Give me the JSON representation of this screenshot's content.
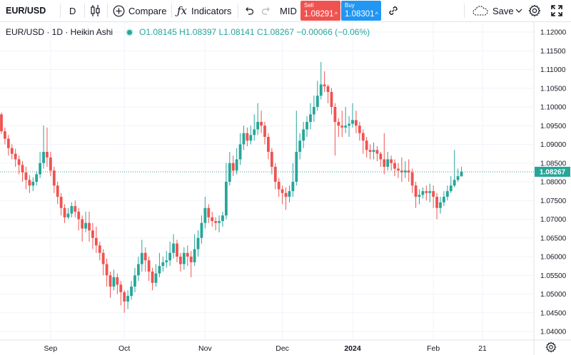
{
  "toolbar": {
    "symbol": "EUR/USD",
    "interval": "D",
    "compare_label": "Compare",
    "indicators_label": "Indicators",
    "mid_label": "MID",
    "sell": {
      "label": "Sell",
      "price": "1.08291"
    },
    "buy": {
      "label": "Buy",
      "price": "1.08301"
    },
    "save_label": "Save",
    "icons": [
      "candles-icon",
      "plus-circle-icon",
      "fx-icon",
      "undo-icon",
      "redo-icon",
      "link-icon",
      "cloud-icon",
      "chevron-down-icon",
      "gear-icon",
      "fullscreen-icon"
    ]
  },
  "legend": {
    "title": "EUR/USD · 1D · Heikin Ashi",
    "open_k": "O",
    "open": "1.08145",
    "high_k": "H",
    "high": "1.08397",
    "low_k": "L",
    "low": "1.08141",
    "close_k": "C",
    "close": "1.08267",
    "change": "−0.00066 (−0.06%)"
  },
  "colors": {
    "up": "#26a69a",
    "down": "#ef5350",
    "price_line": "#26a69a",
    "grid": "#f0f3fa"
  },
  "chart_data": {
    "type": "candlestick",
    "style": "Heikin Ashi",
    "ylim": [
      1.038,
      1.122
    ],
    "y_ticks": [
      "1.04000",
      "1.04500",
      "1.05000",
      "1.05500",
      "1.06000",
      "1.06500",
      "1.07000",
      "1.07500",
      "1.08000",
      "1.08500",
      "1.09000",
      "1.09500",
      "1.10000",
      "1.10500",
      "1.11000",
      "1.11500",
      "1.12000"
    ],
    "x_ticks": [
      {
        "label": "Sep",
        "index": 14,
        "bold": false
      },
      {
        "label": "Oct",
        "index": 35,
        "bold": false
      },
      {
        "label": "Nov",
        "index": 58,
        "bold": false
      },
      {
        "label": "Dec",
        "index": 80,
        "bold": false
      },
      {
        "label": "2024",
        "index": 100,
        "bold": true
      },
      {
        "label": "Feb",
        "index": 123,
        "bold": false
      },
      {
        "label": "21",
        "index": 137,
        "bold": false
      }
    ],
    "last_price": "1.08267",
    "candles": [
      [
        1.098,
        1.0935,
        1.0985,
        1.0928
      ],
      [
        1.0935,
        1.0915,
        1.0945,
        1.09
      ],
      [
        1.0915,
        1.089,
        1.0925,
        1.087
      ],
      [
        1.089,
        1.0875,
        1.09,
        1.086
      ],
      [
        1.0875,
        1.086,
        1.0888,
        1.084
      ],
      [
        1.086,
        1.0845,
        1.087,
        1.082
      ],
      [
        1.0845,
        1.0825,
        1.0855,
        1.08
      ],
      [
        1.0825,
        1.0805,
        1.084,
        1.078
      ],
      [
        1.0805,
        1.079,
        1.0818,
        1.077
      ],
      [
        1.079,
        1.08,
        1.0812,
        1.0775
      ],
      [
        1.08,
        1.082,
        1.0828,
        1.079
      ],
      [
        1.082,
        1.085,
        1.088,
        1.081
      ],
      [
        1.085,
        1.088,
        1.095,
        1.0835
      ],
      [
        1.088,
        1.0865,
        1.0945,
        1.084
      ],
      [
        1.0865,
        1.083,
        1.088,
        1.0815
      ],
      [
        1.083,
        1.079,
        1.084,
        1.077
      ],
      [
        1.079,
        1.076,
        1.08,
        1.074
      ],
      [
        1.076,
        1.073,
        1.077,
        1.071
      ],
      [
        1.073,
        1.0705,
        1.074,
        1.069
      ],
      [
        1.0705,
        1.0715,
        1.073,
        1.07
      ],
      [
        1.0715,
        1.0735,
        1.0745,
        1.0705
      ],
      [
        1.0735,
        1.072,
        1.075,
        1.0705
      ],
      [
        1.072,
        1.07,
        1.073,
        1.067
      ],
      [
        1.07,
        1.0675,
        1.071,
        1.064
      ],
      [
        1.0675,
        1.069,
        1.072,
        1.0665
      ],
      [
        1.069,
        1.067,
        1.072,
        1.064
      ],
      [
        1.067,
        1.065,
        1.069,
        1.062
      ],
      [
        1.065,
        1.063,
        1.068,
        1.061
      ],
      [
        1.063,
        1.061,
        1.064,
        1.059
      ],
      [
        1.061,
        1.058,
        1.062,
        1.055
      ],
      [
        1.058,
        1.055,
        1.0595,
        1.052
      ],
      [
        1.055,
        1.052,
        1.056,
        1.049
      ],
      [
        1.052,
        1.0545,
        1.0565,
        1.051
      ],
      [
        1.0545,
        1.0525,
        1.0555,
        1.05
      ],
      [
        1.0525,
        1.0505,
        1.0535,
        1.047
      ],
      [
        1.0505,
        1.048,
        1.051,
        1.045
      ],
      [
        1.048,
        1.0495,
        1.051,
        1.046
      ],
      [
        1.0495,
        1.052,
        1.0535,
        1.0485
      ],
      [
        1.052,
        1.055,
        1.057,
        1.0505
      ],
      [
        1.055,
        1.058,
        1.06,
        1.0535
      ],
      [
        1.058,
        1.061,
        1.0645,
        1.056
      ],
      [
        1.061,
        1.059,
        1.0625,
        1.056
      ],
      [
        1.059,
        1.056,
        1.06,
        1.0535
      ],
      [
        1.056,
        1.053,
        1.057,
        1.051
      ],
      [
        1.053,
        1.0555,
        1.058,
        1.052
      ],
      [
        1.0555,
        1.0575,
        1.061,
        1.0545
      ],
      [
        1.0575,
        1.0585,
        1.06,
        1.056
      ],
      [
        1.0585,
        1.059,
        1.0615,
        1.057
      ],
      [
        1.059,
        1.061,
        1.064,
        1.0575
      ],
      [
        1.061,
        1.0635,
        1.066,
        1.0595
      ],
      [
        1.0635,
        1.06,
        1.0645,
        1.0585
      ],
      [
        1.06,
        1.058,
        1.061,
        1.056
      ],
      [
        1.058,
        1.061,
        1.0625,
        1.0565
      ],
      [
        1.061,
        1.06,
        1.063,
        1.0575
      ],
      [
        1.06,
        1.0585,
        1.0615,
        1.0545
      ],
      [
        1.0585,
        1.062,
        1.066,
        1.0575
      ],
      [
        1.062,
        1.065,
        1.067,
        1.06
      ],
      [
        1.065,
        1.069,
        1.071,
        1.0635
      ],
      [
        1.069,
        1.073,
        1.076,
        1.0675
      ],
      [
        1.073,
        1.0705,
        1.074,
        1.069
      ],
      [
        1.0705,
        1.0695,
        1.072,
        1.068
      ],
      [
        1.0695,
        1.069,
        1.0705,
        1.067
      ],
      [
        1.069,
        1.0695,
        1.071,
        1.0665
      ],
      [
        1.0695,
        1.071,
        1.072,
        1.068
      ],
      [
        1.071,
        1.08,
        1.085,
        1.07
      ],
      [
        1.08,
        1.085,
        1.088,
        1.079
      ],
      [
        1.085,
        1.083,
        1.087,
        1.0815
      ],
      [
        1.083,
        1.086,
        1.089,
        1.082
      ],
      [
        1.086,
        1.09,
        1.093,
        1.0845
      ],
      [
        1.09,
        1.093,
        1.095,
        1.0885
      ],
      [
        1.093,
        1.091,
        1.0945,
        1.0895
      ],
      [
        1.091,
        1.0925,
        1.095,
        1.09
      ],
      [
        1.0925,
        1.094,
        1.098,
        1.091
      ],
      [
        1.094,
        1.096,
        1.101,
        1.0925
      ],
      [
        1.096,
        1.095,
        1.099,
        1.093
      ],
      [
        1.095,
        1.092,
        1.096,
        1.09
      ],
      [
        1.092,
        1.088,
        1.093,
        1.086
      ],
      [
        1.088,
        1.084,
        1.089,
        1.082
      ],
      [
        1.084,
        1.08,
        1.085,
        1.078
      ],
      [
        1.08,
        1.078,
        1.081,
        1.076
      ],
      [
        1.078,
        1.077,
        1.079,
        1.074
      ],
      [
        1.077,
        1.076,
        1.0785,
        1.0725
      ],
      [
        1.076,
        1.0775,
        1.079,
        1.0745
      ],
      [
        1.0775,
        1.08,
        1.085,
        1.076
      ],
      [
        1.08,
        1.088,
        1.099,
        1.079
      ],
      [
        1.088,
        1.091,
        1.093,
        1.086
      ],
      [
        1.091,
        1.094,
        1.096,
        1.089
      ],
      [
        1.094,
        1.096,
        1.0975,
        1.092
      ],
      [
        1.096,
        1.098,
        1.101,
        1.094
      ],
      [
        1.098,
        1.1,
        1.103,
        1.096
      ],
      [
        1.1,
        1.103,
        1.107,
        1.099
      ],
      [
        1.103,
        1.106,
        1.112,
        1.102
      ],
      [
        1.106,
        1.1055,
        1.1095,
        1.104
      ],
      [
        1.1055,
        1.104,
        1.106,
        1.101
      ],
      [
        1.104,
        1.1,
        1.105,
        1.098
      ],
      [
        1.1,
        1.096,
        1.101,
        1.087
      ],
      [
        1.096,
        1.095,
        1.097,
        1.092
      ],
      [
        1.095,
        1.0945,
        1.099,
        1.092
      ],
      [
        1.0945,
        1.095,
        1.1,
        1.093
      ],
      [
        1.095,
        1.0955,
        1.0975,
        1.092
      ],
      [
        1.0955,
        1.0965,
        1.101,
        1.0945
      ],
      [
        1.0965,
        1.095,
        1.099,
        1.093
      ],
      [
        1.095,
        1.093,
        1.096,
        1.091
      ],
      [
        1.093,
        1.091,
        1.094,
        1.0875
      ],
      [
        1.091,
        1.0885,
        1.092,
        1.0865
      ],
      [
        1.0885,
        1.088,
        1.09,
        1.086
      ],
      [
        1.088,
        1.0885,
        1.0905,
        1.086
      ],
      [
        1.0885,
        1.0875,
        1.0895,
        1.0855
      ],
      [
        1.0875,
        1.086,
        1.088,
        1.084
      ],
      [
        1.086,
        1.084,
        1.093,
        1.082
      ],
      [
        1.084,
        1.086,
        1.088,
        1.083
      ],
      [
        1.086,
        1.085,
        1.087,
        1.083
      ],
      [
        1.085,
        1.0835,
        1.086,
        1.0815
      ],
      [
        1.0835,
        1.083,
        1.085,
        1.081
      ],
      [
        1.083,
        1.0825,
        1.0865,
        1.08
      ],
      [
        1.0825,
        1.083,
        1.0855,
        1.081
      ],
      [
        1.083,
        1.0825,
        1.086,
        1.08
      ],
      [
        1.0825,
        1.079,
        1.0835,
        1.077
      ],
      [
        1.079,
        1.076,
        1.08,
        1.073
      ],
      [
        1.076,
        1.0765,
        1.078,
        1.074
      ],
      [
        1.0765,
        1.0775,
        1.0785,
        1.0755
      ],
      [
        1.0775,
        1.077,
        1.079,
        1.075
      ],
      [
        1.077,
        1.0775,
        1.0795,
        1.0745
      ],
      [
        1.0775,
        1.076,
        1.079,
        1.073
      ],
      [
        1.076,
        1.073,
        1.077,
        1.07
      ],
      [
        1.073,
        1.0745,
        1.076,
        1.0715
      ],
      [
        1.0745,
        1.076,
        1.0775,
        1.0735
      ],
      [
        1.076,
        1.0775,
        1.079,
        1.075
      ],
      [
        1.0775,
        1.079,
        1.0815,
        1.077
      ],
      [
        1.079,
        1.0805,
        1.0885,
        1.0785
      ],
      [
        1.0805,
        1.0815,
        1.0835,
        1.08
      ],
      [
        1.08145,
        1.08267,
        1.08397,
        1.08141
      ]
    ]
  }
}
